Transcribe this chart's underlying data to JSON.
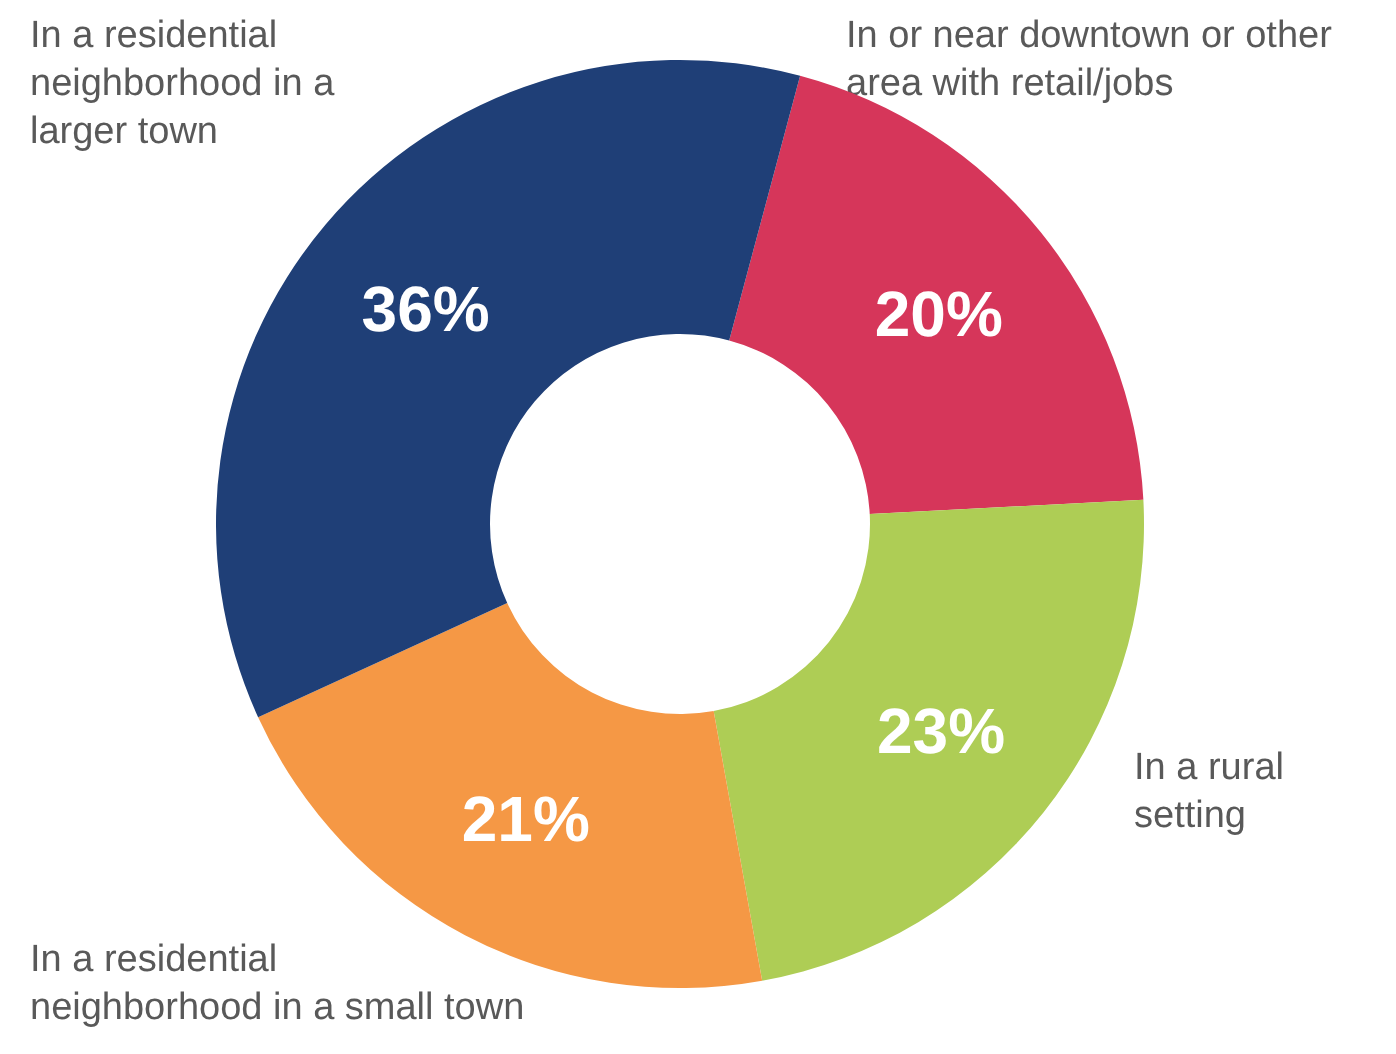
{
  "chart_data": {
    "type": "donut",
    "categories": [
      "In or near downtown or other area with retail/jobs",
      "In a rural setting",
      "In a residential neighborhood in a small town",
      "In a residential neighborhood in a larger town"
    ],
    "values": [
      20,
      23,
      21,
      36
    ],
    "value_labels": [
      "20%",
      "23%",
      "21%",
      "36%"
    ],
    "colors": [
      "#d6365a",
      "#aecd55",
      "#f59845",
      "#1f3f77"
    ],
    "legend": false
  }
}
